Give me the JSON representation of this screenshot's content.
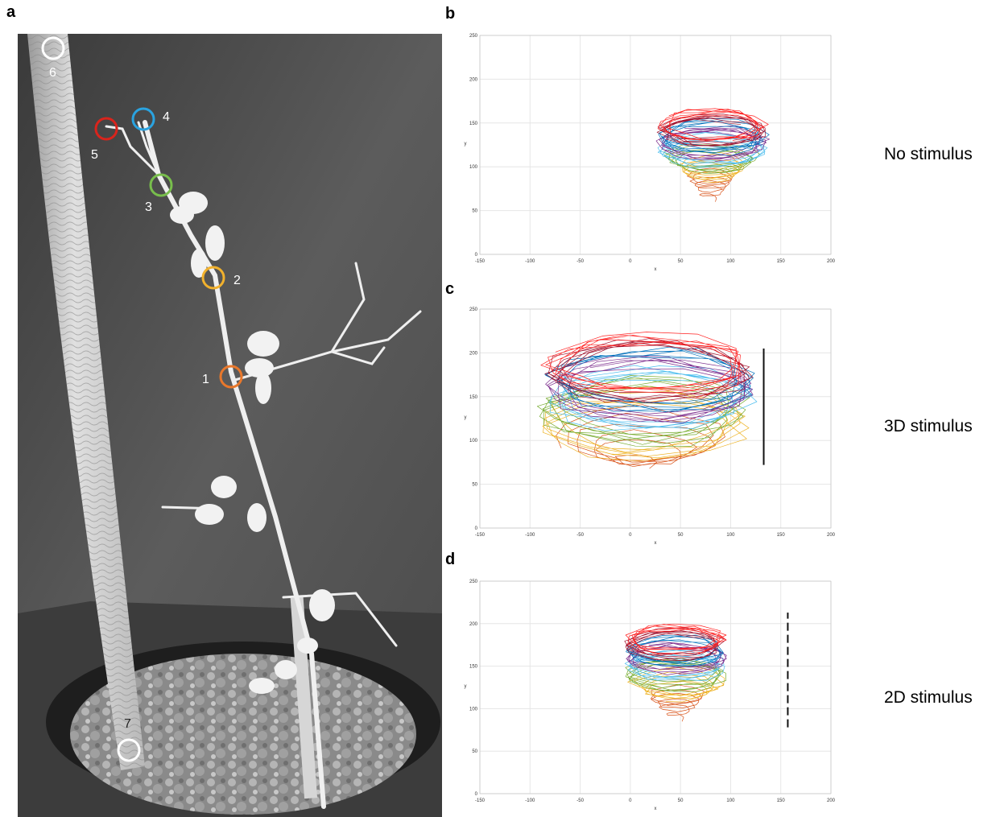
{
  "panels": {
    "a": "a",
    "b": "b",
    "c": "c",
    "d": "d"
  },
  "photo": {
    "markers": [
      {
        "label": "1",
        "color": "#e9782b"
      },
      {
        "label": "2",
        "color": "#f1b12d"
      },
      {
        "label": "3",
        "color": "#78be4c"
      },
      {
        "label": "4",
        "color": "#2aa3e0"
      },
      {
        "label": "5",
        "color": "#d9241c"
      },
      {
        "label": "6",
        "color": "#ffffff"
      },
      {
        "label": "7",
        "color": "#ffffff"
      }
    ]
  },
  "chart_data": [
    {
      "type": "line",
      "panel": "b",
      "condition_label": "No stimulus",
      "xlabel": "x",
      "ylabel": "y",
      "xlim": [
        -150,
        200
      ],
      "ylim": [
        0,
        250
      ],
      "x_ticks": [
        "-150",
        "-100",
        "-50",
        "0",
        "50",
        "100",
        "150",
        "200"
      ],
      "y_ticks": [
        "0",
        "50",
        "100",
        "150",
        "200",
        "250"
      ],
      "grid": true,
      "trajectory": {
        "start": [
          80,
          60
        ],
        "center": [
          82,
          128
        ],
        "base_half_width": 6,
        "width_growth": 0.55,
        "top_half_width": 52,
        "top": 160
      },
      "stimulus": null,
      "series_colors": [
        "#d95319",
        "#edb120",
        "#77ac30",
        "#4dbeee",
        "#7e2f8e",
        "#0072bd",
        "#a2142f",
        "#ff2020"
      ]
    },
    {
      "type": "line",
      "panel": "c",
      "condition_label": "3D stimulus",
      "xlabel": "x",
      "ylabel": "y",
      "xlim": [
        -150,
        200
      ],
      "ylim": [
        0,
        250
      ],
      "x_ticks": [
        "-150",
        "-100",
        "-50",
        "0",
        "50",
        "100",
        "150",
        "200"
      ],
      "y_ticks": [
        "0",
        "50",
        "100",
        "150",
        "200",
        "250"
      ],
      "grid": true,
      "trajectory": {
        "start": [
          12,
          68
        ],
        "center": [
          20,
          135
        ],
        "base_half_width": 8,
        "width_growth": 1.9,
        "top_half_width": 100,
        "top": 200
      },
      "stimulus": {
        "x": 133,
        "y_from": 72,
        "y_to": 205,
        "style": "solid"
      },
      "series_colors": [
        "#d95319",
        "#edb120",
        "#77ac30",
        "#4dbeee",
        "#7e2f8e",
        "#0072bd",
        "#a2142f",
        "#ff2020"
      ]
    },
    {
      "type": "line",
      "panel": "d",
      "condition_label": "2D stimulus",
      "xlabel": "x",
      "ylabel": "y",
      "xlim": [
        -150,
        200
      ],
      "ylim": [
        0,
        250
      ],
      "x_ticks": [
        "-150",
        "-100",
        "-50",
        "0",
        "50",
        "100",
        "150",
        "200"
      ],
      "y_ticks": [
        "0",
        "50",
        "100",
        "150",
        "200",
        "250"
      ],
      "grid": true,
      "trajectory": {
        "start": [
          47,
          85
        ],
        "center": [
          45,
          160
        ],
        "base_half_width": 5,
        "width_growth": 0.7,
        "top_half_width": 48,
        "top": 195
      },
      "stimulus": {
        "x": 157,
        "y_from": 78,
        "y_to": 213,
        "style": "dashed"
      },
      "series_colors": [
        "#d95319",
        "#edb120",
        "#77ac30",
        "#4dbeee",
        "#7e2f8e",
        "#0072bd",
        "#a2142f",
        "#ff2020"
      ]
    }
  ]
}
